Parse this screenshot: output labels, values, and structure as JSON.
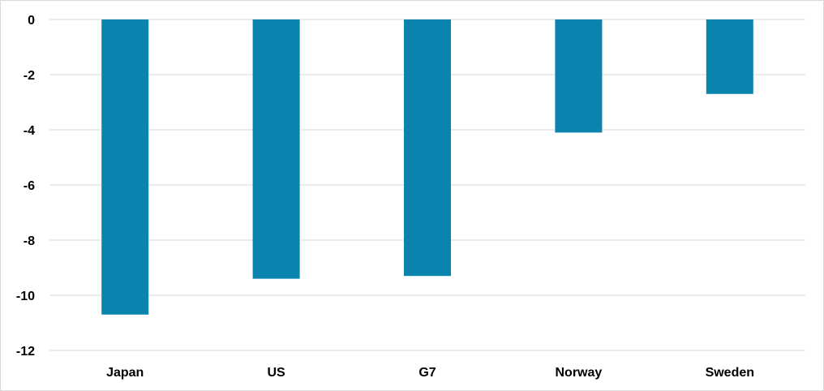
{
  "chart_data": {
    "type": "bar",
    "title": "",
    "xlabel": "",
    "ylabel": "",
    "categories": [
      "Japan",
      "US",
      "G7",
      "Norway",
      "Sweden"
    ],
    "series": [
      {
        "values": [
          -10.7,
          -9.4,
          -9.3,
          -4.1,
          -2.7
        ],
        "color": "#0a83ae"
      }
    ],
    "ylim": [
      -12,
      0
    ],
    "yticks": [
      0,
      -2,
      -4,
      -6,
      -8,
      -10,
      -12
    ],
    "ytick_labels": [
      "0",
      "-2",
      "-4",
      "-6",
      "-8",
      "-10",
      "-12"
    ],
    "grid": true,
    "gridline_color": "#d9d9d9",
    "legend": "none"
  }
}
